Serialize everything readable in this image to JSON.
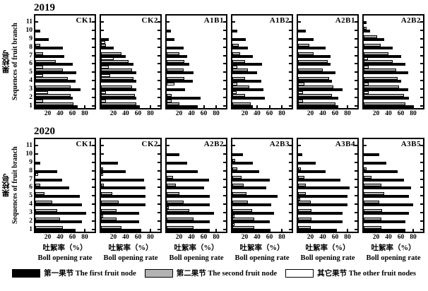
{
  "chart_data": {
    "type": "bar",
    "orientation": "horizontal",
    "y_axis": {
      "label_cn": "果枝号",
      "label_en": "Sequences of fruit branch",
      "ticks": [
        11,
        10,
        9,
        8,
        7,
        6,
        5,
        4,
        3,
        2,
        1
      ]
    },
    "x_axis": {
      "ticks": [
        20,
        40,
        60,
        80
      ],
      "max": 96,
      "label_cn": "吐絮率（%）",
      "label_en": "Boll opening rate"
    },
    "series_order": [
      "first",
      "second",
      "other"
    ],
    "legend": [
      {
        "key": "first",
        "label": "第一果节 The first fruit node",
        "color": "#000000"
      },
      {
        "key": "second",
        "label": "第二果节 The second fruit node",
        "color": "#b3b3b3"
      },
      {
        "key": "other",
        "label": "其它果节 The other fruit nodes",
        "color": "#ffffff"
      }
    ],
    "rows": [
      {
        "year": "2019",
        "show_x_label": false,
        "panels": [
          {
            "label": "CK1",
            "first": [
              68,
              60,
              73,
              65,
              66,
              60,
              47,
              45,
              22,
              8,
              0
            ],
            "second": [
              62,
              57,
              57,
              52,
              45,
              33,
              13,
              8,
              0,
              0,
              0
            ],
            "other": [
              13,
              20,
              0,
              12,
              13,
              0,
              0,
              0,
              0,
              0,
              0
            ]
          },
          {
            "label": "CK2",
            "first": [
              63,
              57,
              57,
              57,
              57,
              52,
              40,
              20,
              13,
              0,
              0
            ],
            "second": [
              57,
              55,
              50,
              52,
              50,
              45,
              33,
              8,
              0,
              0,
              0
            ],
            "other": [
              8,
              8,
              0,
              15,
              13,
              20,
              0,
              7,
              0,
              0,
              0
            ]
          },
          {
            "label": "A1B1",
            "first": [
              50,
              55,
              30,
              42,
              43,
              37,
              33,
              27,
              12,
              7,
              0
            ],
            "second": [
              20,
              8,
              0,
              28,
              27,
              28,
              20,
              0,
              0,
              0,
              0
            ],
            "other": [
              8,
              0,
              13,
              0,
              0,
              0,
              0,
              0,
              0,
              0,
              0
            ]
          },
          {
            "label": "A1B2",
            "first": [
              33,
              53,
              50,
              47,
              40,
              48,
              33,
              25,
              22,
              8,
              0
            ],
            "second": [
              30,
              20,
              27,
              20,
              25,
              20,
              13,
              10,
              0,
              0,
              0
            ],
            "other": [
              0,
              7,
              8,
              0,
              8,
              0,
              0,
              0,
              0,
              0,
              0
            ]
          },
          {
            "label": "A2B1",
            "first": [
              65,
              65,
              72,
              55,
              60,
              53,
              53,
              45,
              25,
              13,
              0
            ],
            "second": [
              60,
              55,
              57,
              50,
              40,
              48,
              25,
              18,
              0,
              0,
              0
            ],
            "other": [
              8,
              8,
              10,
              0,
              0,
              0,
              0,
              0,
              0,
              0,
              0
            ]
          },
          {
            "label": "A2B2",
            "first": [
              80,
              73,
              72,
              60,
              72,
              67,
              60,
              47,
              33,
              10,
              5
            ],
            "second": [
              67,
              65,
              57,
              55,
              53,
              47,
              40,
              27,
              22,
              5,
              0
            ],
            "other": [
              0,
              8,
              8,
              0,
              8,
              7,
              0,
              0,
              0,
              0,
              0
            ]
          }
        ]
      },
      {
        "year": "2020",
        "show_x_label": true,
        "panels": [
          {
            "label": "CK1",
            "first": [
              65,
              75,
              82,
              75,
              72,
              55,
              43,
              35,
              8,
              0,
              0
            ],
            "second": [
              45,
              40,
              35,
              27,
              15,
              8,
              0,
              0,
              0,
              0,
              0
            ],
            "other": [
              0,
              0,
              0,
              0,
              0,
              0,
              5,
              0,
              0,
              0,
              0
            ]
          },
          {
            "label": "CK2",
            "first": [
              65,
              62,
              62,
              72,
              72,
              72,
              70,
              40,
              27,
              0,
              0
            ],
            "second": [
              33,
              25,
              25,
              28,
              18,
              5,
              0,
              3,
              0,
              0,
              0
            ],
            "other": [
              0,
              3,
              0,
              0,
              0,
              0,
              3,
              0,
              0,
              0,
              0
            ]
          },
          {
            "label": "A2B2",
            "first": [
              70,
              70,
              77,
              70,
              70,
              60,
              68,
              50,
              33,
              20,
              0
            ],
            "second": [
              43,
              43,
              37,
              27,
              20,
              15,
              10,
              0,
              0,
              0,
              0
            ],
            "other": [
              0,
              0,
              3,
              0,
              0,
              0,
              0,
              0,
              0,
              0,
              0
            ]
          },
          {
            "label": "A2B3",
            "first": [
              60,
              60,
              67,
              63,
              73,
              55,
              60,
              43,
              33,
              17,
              0
            ],
            "second": [
              35,
              35,
              32,
              25,
              23,
              18,
              15,
              8,
              5,
              0,
              0
            ],
            "other": [
              3,
              3,
              0,
              0,
              0,
              0,
              0,
              0,
              0,
              0,
              0
            ]
          },
          {
            "label": "A3B4",
            "first": [
              63,
              72,
              72,
              80,
              80,
              83,
              68,
              45,
              28,
              7,
              0
            ],
            "second": [
              20,
              22,
              22,
              20,
              12,
              12,
              10,
              5,
              0,
              0,
              0
            ],
            "other": [
              0,
              0,
              0,
              3,
              0,
              0,
              0,
              0,
              0,
              0,
              0
            ]
          },
          {
            "label": "A3B5",
            "first": [
              67,
              67,
              73,
              80,
              73,
              77,
              65,
              55,
              37,
              25,
              0
            ],
            "second": [
              28,
              28,
              30,
              25,
              33,
              28,
              12,
              5,
              0,
              0,
              0
            ],
            "other": [
              0,
              0,
              0,
              0,
              0,
              0,
              0,
              0,
              0,
              0,
              0
            ]
          }
        ]
      }
    ]
  }
}
